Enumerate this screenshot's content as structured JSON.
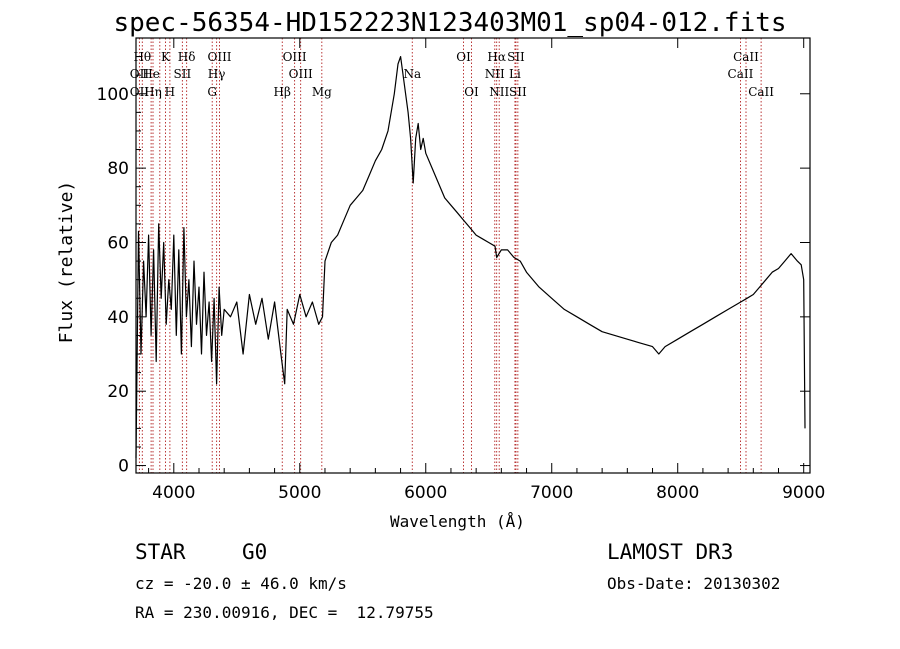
{
  "chart_data": {
    "type": "line",
    "title": "spec-56354-HD152223N123403M01_sp04-012.fits",
    "xlabel": "Wavelength (Å)",
    "ylabel": "Flux (relative)",
    "xlim": [
      3700,
      9050
    ],
    "ylim": [
      -2,
      115
    ],
    "x_ticks": [
      4000,
      5000,
      6000,
      7000,
      8000,
      9000
    ],
    "x_tick_labels": [
      "4000",
      "5000",
      "6000",
      "7000",
      "8000",
      "9000"
    ],
    "y_ticks": [
      0,
      20,
      40,
      60,
      80,
      100
    ],
    "y_tick_labels": [
      "0",
      "20",
      "40",
      "60",
      "80",
      "100"
    ],
    "grid": false,
    "line_color": "#000000",
    "marker_color": "#b22222",
    "series": [
      {
        "name": "flux",
        "x": [
          3700,
          3720,
          3740,
          3760,
          3780,
          3800,
          3820,
          3840,
          3860,
          3880,
          3900,
          3920,
          3940,
          3960,
          3980,
          4000,
          4020,
          4040,
          4060,
          4080,
          4100,
          4120,
          4140,
          4160,
          4180,
          4200,
          4220,
          4240,
          4260,
          4280,
          4300,
          4320,
          4340,
          4360,
          4380,
          4400,
          4450,
          4500,
          4550,
          4600,
          4650,
          4700,
          4750,
          4800,
          4850,
          4880,
          4900,
          4950,
          5000,
          5050,
          5100,
          5150,
          5180,
          5200,
          5250,
          5300,
          5350,
          5400,
          5450,
          5500,
          5550,
          5600,
          5650,
          5700,
          5750,
          5780,
          5800,
          5820,
          5840,
          5860,
          5880,
          5900,
          5920,
          5940,
          5960,
          5980,
          6000,
          6050,
          6100,
          6150,
          6200,
          6250,
          6300,
          6350,
          6400,
          6450,
          6500,
          6550,
          6563,
          6600,
          6650,
          6700,
          6750,
          6800,
          6900,
          7000,
          7100,
          7200,
          7300,
          7400,
          7500,
          7600,
          7700,
          7800,
          7850,
          7900,
          8000,
          8100,
          8200,
          8300,
          8400,
          8500,
          8550,
          8600,
          8650,
          8700,
          8750,
          8800,
          8850,
          8900,
          8950,
          8980,
          9000,
          9010
        ],
        "y": [
          2,
          63,
          30,
          55,
          40,
          62,
          35,
          58,
          28,
          65,
          45,
          60,
          38,
          50,
          42,
          62,
          35,
          58,
          30,
          64,
          40,
          50,
          32,
          55,
          38,
          48,
          30,
          52,
          35,
          44,
          28,
          45,
          22,
          48,
          35,
          42,
          40,
          44,
          30,
          46,
          38,
          45,
          34,
          44,
          30,
          22,
          42,
          38,
          46,
          40,
          44,
          38,
          40,
          55,
          60,
          62,
          66,
          70,
          72,
          74,
          78,
          82,
          85,
          90,
          100,
          108,
          110,
          105,
          100,
          95,
          88,
          76,
          88,
          92,
          85,
          88,
          84,
          80,
          76,
          72,
          70,
          68,
          66,
          64,
          62,
          61,
          60,
          59,
          56,
          58,
          58,
          56,
          55,
          52,
          48,
          45,
          42,
          40,
          38,
          36,
          35,
          34,
          33,
          32,
          30,
          32,
          34,
          36,
          38,
          40,
          42,
          44,
          45,
          46,
          48,
          50,
          52,
          53,
          55,
          57,
          55,
          54,
          50,
          10
        ]
      }
    ],
    "line_labels": [
      {
        "label": "Hθ",
        "x": 3750,
        "row": 1
      },
      {
        "label": "OII",
        "x": 3727,
        "row": 2
      },
      {
        "label": "OII",
        "x": 3727,
        "row": 3
      },
      {
        "label": "K",
        "x": 3934,
        "row": 1
      },
      {
        "label": "He",
        "x": 3820,
        "row": 2
      },
      {
        "label": "Hη",
        "x": 3835,
        "row": 3
      },
      {
        "label": "Hδ",
        "x": 4102,
        "row": 1
      },
      {
        "label": "SII",
        "x": 4068,
        "row": 2
      },
      {
        "label": "H",
        "x": 3969,
        "row": 3
      },
      {
        "label": "OIII",
        "x": 4363,
        "row": 1
      },
      {
        "label": "Hγ",
        "x": 4340,
        "row": 2
      },
      {
        "label": "G",
        "x": 4305,
        "row": 3
      },
      {
        "label": "OIII",
        "x": 4959,
        "row": 1
      },
      {
        "label": "OIII",
        "x": 5007,
        "row": 2
      },
      {
        "label": "Hβ",
        "x": 4861,
        "row": 3
      },
      {
        "label": "Mg",
        "x": 5175,
        "row": 3
      },
      {
        "label": "Na",
        "x": 5893,
        "row": 2
      },
      {
        "label": "OI",
        "x": 6300,
        "row": 1
      },
      {
        "label": "OI",
        "x": 6363,
        "row": 3
      },
      {
        "label": "Hα",
        "x": 6563,
        "row": 1
      },
      {
        "label": "SII",
        "x": 6716,
        "row": 1
      },
      {
        "label": "NII",
        "x": 6548,
        "row": 2
      },
      {
        "label": "Li",
        "x": 6708,
        "row": 2
      },
      {
        "label": "NII",
        "x": 6583,
        "row": 3
      },
      {
        "label": "SII",
        "x": 6731,
        "row": 3
      },
      {
        "label": "CaII",
        "x": 8542,
        "row": 1
      },
      {
        "label": "CaII",
        "x": 8498,
        "row": 2
      },
      {
        "label": "CaII",
        "x": 8662,
        "row": 3
      }
    ],
    "marker_lines": [
      3727,
      3750,
      3820,
      3835,
      3889,
      3934,
      3969,
      4068,
      4102,
      4305,
      4340,
      4363,
      4861,
      4959,
      5007,
      5175,
      5893,
      6300,
      6363,
      6548,
      6563,
      6583,
      6708,
      6716,
      6731,
      8498,
      8542,
      8662
    ]
  },
  "info": {
    "object_class": "STAR",
    "subclass": "G0",
    "survey": "LAMOST DR3",
    "redshift": "cz = -20.0 ± 46.0 km/s",
    "obs_date": "Obs-Date: 20130302",
    "coords": "RA = 230.00916, DEC =  12.79755"
  }
}
